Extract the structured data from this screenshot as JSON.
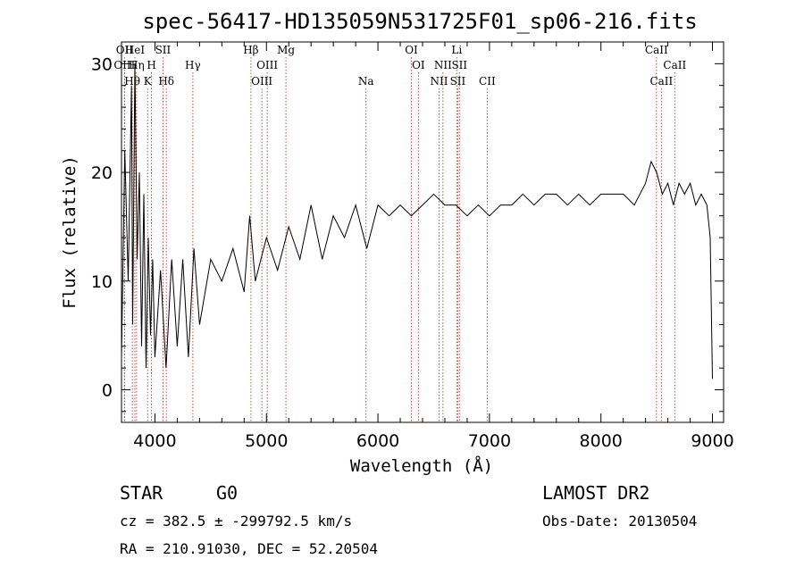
{
  "title": "spec-56417-HD135059N531725F01_sp06-216.fits",
  "info": {
    "class": "STAR",
    "subclass": "G0",
    "survey": "LAMOST DR2",
    "cz": "cz = 382.5 ± -299792.5 km/s",
    "obs_date": "Obs-Date: 20130504",
    "radec": "RA = 210.91030, DEC =  52.20504"
  },
  "colors": {
    "spectrum": "#000000",
    "line_marker": "#c0504d",
    "axes": "#000000"
  },
  "chart_data": {
    "type": "line",
    "xlabel": "Wavelength (Å)",
    "ylabel": "Flux (relative)",
    "xlim": [
      3700,
      9100
    ],
    "ylim": [
      -3,
      32
    ],
    "xticks": [
      4000,
      5000,
      6000,
      7000,
      8000,
      9000
    ],
    "yticks": [
      0,
      10,
      20,
      30
    ],
    "grid": false,
    "series": [
      {
        "points": [
          [
            3700,
            3
          ],
          [
            3730,
            22
          ],
          [
            3760,
            10
          ],
          [
            3790,
            28
          ],
          [
            3800,
            6
          ],
          [
            3820,
            30
          ],
          [
            3840,
            12
          ],
          [
            3860,
            20
          ],
          [
            3880,
            4
          ],
          [
            3900,
            18
          ],
          [
            3920,
            2
          ],
          [
            3940,
            14
          ],
          [
            3960,
            5
          ],
          [
            3980,
            12
          ],
          [
            4000,
            3
          ],
          [
            4050,
            11
          ],
          [
            4100,
            2
          ],
          [
            4150,
            12
          ],
          [
            4200,
            4
          ],
          [
            4250,
            12
          ],
          [
            4300,
            3
          ],
          [
            4350,
            13
          ],
          [
            4400,
            6
          ],
          [
            4500,
            12
          ],
          [
            4600,
            10
          ],
          [
            4700,
            13
          ],
          [
            4800,
            9
          ],
          [
            4850,
            16
          ],
          [
            4900,
            10
          ],
          [
            5000,
            14
          ],
          [
            5100,
            11
          ],
          [
            5200,
            15
          ],
          [
            5300,
            12
          ],
          [
            5400,
            17
          ],
          [
            5500,
            12
          ],
          [
            5600,
            16
          ],
          [
            5700,
            14
          ],
          [
            5800,
            17
          ],
          [
            5900,
            13
          ],
          [
            6000,
            17
          ],
          [
            6100,
            16
          ],
          [
            6200,
            17
          ],
          [
            6300,
            16
          ],
          [
            6400,
            17
          ],
          [
            6500,
            18
          ],
          [
            6600,
            17
          ],
          [
            6700,
            17
          ],
          [
            6800,
            16
          ],
          [
            6900,
            17
          ],
          [
            7000,
            16
          ],
          [
            7100,
            17
          ],
          [
            7200,
            17
          ],
          [
            7300,
            18
          ],
          [
            7400,
            17
          ],
          [
            7500,
            18
          ],
          [
            7600,
            18
          ],
          [
            7700,
            17
          ],
          [
            7800,
            18
          ],
          [
            7900,
            17
          ],
          [
            8000,
            18
          ],
          [
            8100,
            18
          ],
          [
            8200,
            18
          ],
          [
            8300,
            17
          ],
          [
            8400,
            19
          ],
          [
            8450,
            21
          ],
          [
            8500,
            20
          ],
          [
            8550,
            18
          ],
          [
            8600,
            19
          ],
          [
            8650,
            17
          ],
          [
            8700,
            19
          ],
          [
            8750,
            18
          ],
          [
            8800,
            19
          ],
          [
            8850,
            17
          ],
          [
            8900,
            18
          ],
          [
            8950,
            17
          ],
          [
            8980,
            14
          ],
          [
            9000,
            1
          ]
        ]
      }
    ],
    "lines": [
      {
        "label": "OII",
        "wave": 3727,
        "row": 0
      },
      {
        "label": "OIII",
        "wave": 3727,
        "row": 1
      },
      {
        "label": "Hθ",
        "wave": 3797,
        "row": 2
      },
      {
        "label": "HeI",
        "wave": 3820,
        "row": 0
      },
      {
        "label": "Hη",
        "wave": 3835,
        "row": 1
      },
      {
        "label": "K",
        "wave": 3934,
        "row": 2
      },
      {
        "label": "H",
        "wave": 3969,
        "row": 1
      },
      {
        "label": "SII",
        "wave": 4072,
        "row": 0
      },
      {
        "label": "Hδ",
        "wave": 4102,
        "row": 2
      },
      {
        "label": "Hγ",
        "wave": 4340,
        "row": 1
      },
      {
        "label": "Hβ",
        "wave": 4861,
        "row": 0
      },
      {
        "label": "OIII",
        "wave": 4959,
        "row": 2
      },
      {
        "label": "OIII",
        "wave": 5007,
        "row": 1
      },
      {
        "label": "Mg",
        "wave": 5175,
        "row": 0
      },
      {
        "label": "Na",
        "wave": 5893,
        "row": 2
      },
      {
        "label": "OI",
        "wave": 6300,
        "row": 0
      },
      {
        "label": "OI",
        "wave": 6363,
        "row": 1
      },
      {
        "label": "NII",
        "wave": 6548,
        "row": 2
      },
      {
        "label": "NII",
        "wave": 6583,
        "row": 1
      },
      {
        "label": "Li",
        "wave": 6707,
        "row": 0
      },
      {
        "label": "SII",
        "wave": 6716,
        "row": 2
      },
      {
        "label": "SII",
        "wave": 6731,
        "row": 1
      },
      {
        "label": "CII",
        "wave": 6980,
        "row": 2
      },
      {
        "label": "CaII",
        "wave": 8498,
        "row": 0
      },
      {
        "label": "CaII",
        "wave": 8542,
        "row": 2
      },
      {
        "label": "CaII",
        "wave": 8662,
        "row": 1
      }
    ]
  }
}
